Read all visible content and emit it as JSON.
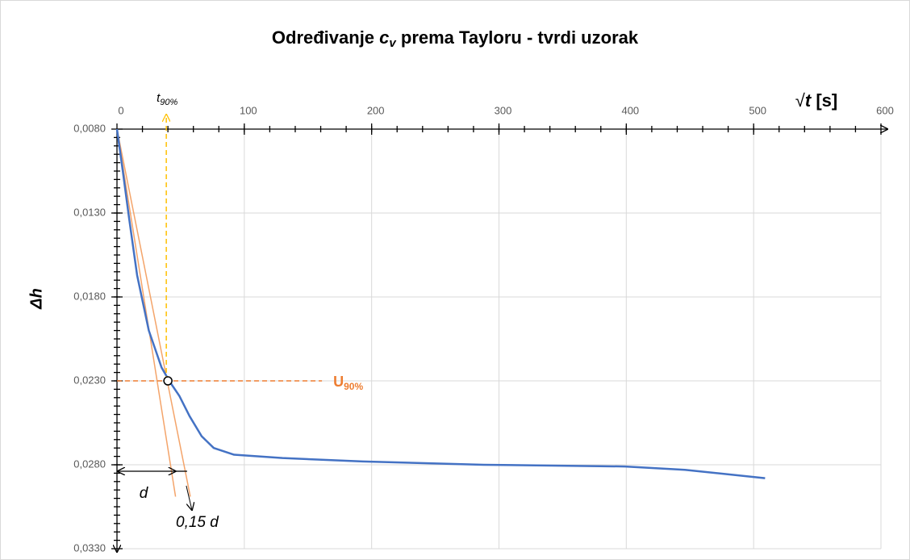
{
  "chart_data": {
    "type": "line",
    "title": {
      "main": "Određivanje ",
      "var": "c",
      "sub": "v",
      "rest": " prema Tayloru - tvrdi uzorak"
    },
    "x_label": {
      "root": "√",
      "var": "t",
      "unit": " [s]"
    },
    "y_label": "Δh",
    "xlim": [
      0,
      600
    ],
    "xticks": [
      0,
      100,
      200,
      300,
      400,
      500,
      600
    ],
    "x_minor_step": 20,
    "ylim": [
      0.008,
      0.033
    ],
    "y_inverted": true,
    "yticks": [
      {
        "value": 0.008,
        "label": "0,0080"
      },
      {
        "value": 0.013,
        "label": "0,0130"
      },
      {
        "value": 0.018,
        "label": "0,0180"
      },
      {
        "value": 0.023,
        "label": "0,0230"
      },
      {
        "value": 0.028,
        "label": "0,0280"
      },
      {
        "value": 0.033,
        "label": "0,0330"
      }
    ],
    "y_minor_step": 0.0005,
    "grid": true,
    "series": [
      {
        "color": "#4472c4",
        "x": [
          0,
          4.4,
          9.5,
          15.8,
          25,
          35,
          41,
          49,
          57,
          66.5,
          76,
          92,
          130,
          193,
          288,
          399,
          446,
          509
        ],
        "values": [
          0.008,
          0.0104,
          0.0133,
          0.0167,
          0.02,
          0.0222,
          0.023,
          0.0239,
          0.0251,
          0.0263,
          0.027,
          0.0274,
          0.0276,
          0.0278,
          0.028,
          0.0281,
          0.0283,
          0.0288
        ]
      },
      {
        "color": "#f4a46a",
        "x": [
          0,
          46
        ],
        "values": [
          0.008,
          0.0299
        ]
      },
      {
        "color": "#f4a46a",
        "x": [
          0,
          57.6
        ],
        "values": [
          0.008,
          0.0299
        ]
      }
    ],
    "u90": {
      "x": 40,
      "y": 0.023,
      "line_x_end": 161,
      "label": "U",
      "sub": "90%",
      "color": "#ed7d31"
    },
    "t90": {
      "label": "t",
      "sub": "90%",
      "color": "#ffc000"
    },
    "d_label": "d",
    "d15_label": "0,15 d"
  }
}
